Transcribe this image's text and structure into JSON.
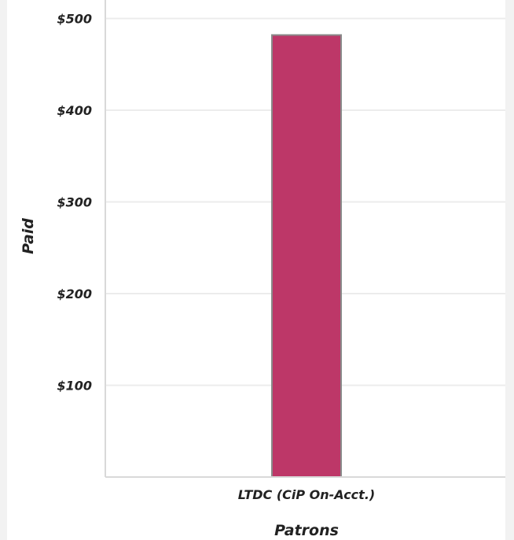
{
  "chart_data": {
    "type": "bar",
    "categories": [
      "LTDC (CiP On-Acct.)"
    ],
    "series": [
      {
        "values": [
          482
        ]
      }
    ],
    "xlabel": "Patrons",
    "ylabel": "Paid",
    "ylim": [
      0,
      520
    ],
    "yticks": [
      100,
      200,
      300,
      400,
      500
    ],
    "ytick_labels": [
      "$100",
      "$200",
      "$300",
      "$400",
      "$500"
    ],
    "grid": true,
    "legend": "none",
    "colors": {
      "bar": "#bd3768",
      "bar_edge": "#8a8a8a",
      "grid": "#ececec",
      "axis": "#d9d9d9"
    }
  }
}
